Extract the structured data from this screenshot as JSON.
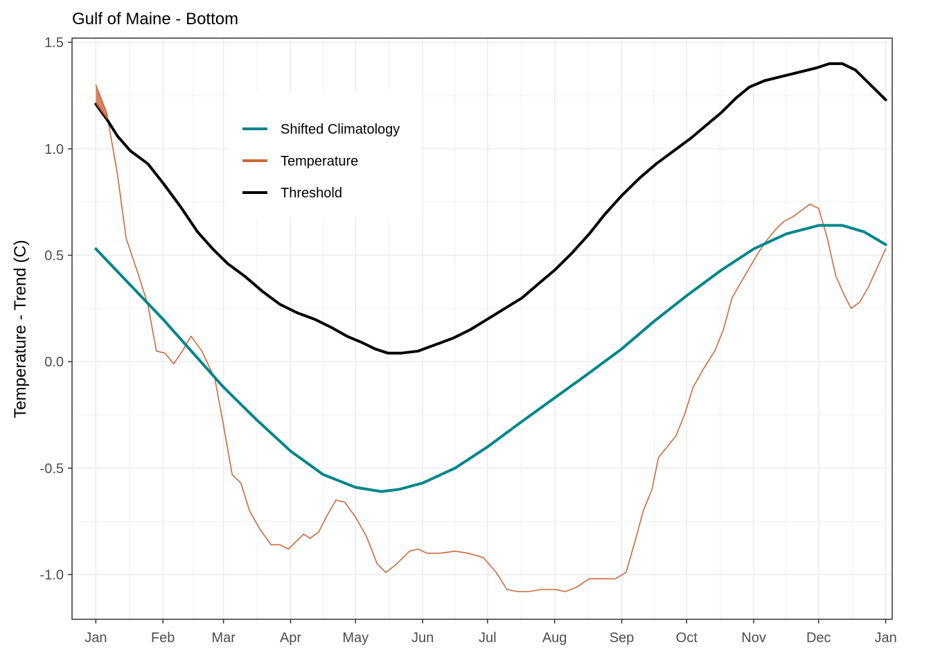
{
  "chart_data": {
    "type": "line",
    "title": "Gulf of Maine - Bottom",
    "xlabel": "",
    "ylabel": "Temperature - Trend (C)",
    "x_unit": "day of year",
    "x_ticks": [
      {
        "label": "Jan",
        "day": 1
      },
      {
        "label": "Feb",
        "day": 32
      },
      {
        "label": "Mar",
        "day": 60
      },
      {
        "label": "Apr",
        "day": 91
      },
      {
        "label": "May",
        "day": 121
      },
      {
        "label": "Jun",
        "day": 152
      },
      {
        "label": "Jul",
        "day": 182
      },
      {
        "label": "Aug",
        "day": 213
      },
      {
        "label": "Sep",
        "day": 244
      },
      {
        "label": "Oct",
        "day": 274
      },
      {
        "label": "Nov",
        "day": 305
      },
      {
        "label": "Dec",
        "day": 335
      },
      {
        "label": "Jan",
        "day": 366
      }
    ],
    "y_ticks": [
      "1.5",
      "1.0",
      "0.5",
      "0.0",
      "-0.5",
      "-1.0"
    ],
    "xlim": [
      -10,
      369
    ],
    "ylim": [
      -1.21,
      1.52
    ],
    "grid": true,
    "legend_position": "top-left inside",
    "series": [
      {
        "name": "Shifted Climatology",
        "color": "#00868b",
        "points": [
          [
            1,
            0.53
          ],
          [
            16,
            0.37
          ],
          [
            32,
            0.2
          ],
          [
            46,
            0.04
          ],
          [
            60,
            -0.12
          ],
          [
            75,
            -0.27
          ],
          [
            91,
            -0.42
          ],
          [
            106,
            -0.53
          ],
          [
            121,
            -0.59
          ],
          [
            133,
            -0.61
          ],
          [
            141,
            -0.6
          ],
          [
            152,
            -0.57
          ],
          [
            167,
            -0.5
          ],
          [
            182,
            -0.4
          ],
          [
            198,
            -0.28
          ],
          [
            213,
            -0.17
          ],
          [
            228,
            -0.06
          ],
          [
            244,
            0.06
          ],
          [
            259,
            0.19
          ],
          [
            274,
            0.31
          ],
          [
            290,
            0.43
          ],
          [
            305,
            0.53
          ],
          [
            320,
            0.6
          ],
          [
            335,
            0.64
          ],
          [
            346,
            0.64
          ],
          [
            356,
            0.61
          ],
          [
            366,
            0.55
          ]
        ]
      },
      {
        "name": "Temperature",
        "color": "#cd6839",
        "points": [
          [
            1,
            1.3
          ],
          [
            6,
            1.17
          ],
          [
            11,
            0.88
          ],
          [
            15,
            0.58
          ],
          [
            20,
            0.43
          ],
          [
            25,
            0.27
          ],
          [
            29,
            0.05
          ],
          [
            33,
            0.04
          ],
          [
            37,
            -0.01
          ],
          [
            41,
            0.05
          ],
          [
            45,
            0.12
          ],
          [
            50,
            0.05
          ],
          [
            56,
            -0.08
          ],
          [
            60,
            -0.3
          ],
          [
            64,
            -0.53
          ],
          [
            68,
            -0.57
          ],
          [
            72,
            -0.7
          ],
          [
            77,
            -0.79
          ],
          [
            82,
            -0.86
          ],
          [
            86,
            -0.86
          ],
          [
            90,
            -0.88
          ],
          [
            94,
            -0.84
          ],
          [
            97,
            -0.81
          ],
          [
            100,
            -0.83
          ],
          [
            104,
            -0.8
          ],
          [
            108,
            -0.72
          ],
          [
            112,
            -0.65
          ],
          [
            116,
            -0.66
          ],
          [
            121,
            -0.73
          ],
          [
            126,
            -0.82
          ],
          [
            131,
            -0.95
          ],
          [
            135,
            -0.99
          ],
          [
            140,
            -0.95
          ],
          [
            146,
            -0.89
          ],
          [
            150,
            -0.88
          ],
          [
            154,
            -0.9
          ],
          [
            160,
            -0.9
          ],
          [
            167,
            -0.89
          ],
          [
            173,
            -0.9
          ],
          [
            180,
            -0.92
          ],
          [
            186,
            -0.99
          ],
          [
            191,
            -1.07
          ],
          [
            196,
            -1.08
          ],
          [
            201,
            -1.08
          ],
          [
            207,
            -1.07
          ],
          [
            213,
            -1.07
          ],
          [
            218,
            -1.08
          ],
          [
            223,
            -1.06
          ],
          [
            229,
            -1.02
          ],
          [
            235,
            -1.02
          ],
          [
            241,
            -1.02
          ],
          [
            246,
            -0.99
          ],
          [
            250,
            -0.85
          ],
          [
            254,
            -0.7
          ],
          [
            258,
            -0.6
          ],
          [
            261,
            -0.45
          ],
          [
            265,
            -0.4
          ],
          [
            269,
            -0.35
          ],
          [
            273,
            -0.25
          ],
          [
            277,
            -0.12
          ],
          [
            282,
            -0.03
          ],
          [
            287,
            0.05
          ],
          [
            291,
            0.15
          ],
          [
            295,
            0.3
          ],
          [
            299,
            0.37
          ],
          [
            303,
            0.44
          ],
          [
            307,
            0.51
          ],
          [
            311,
            0.57
          ],
          [
            315,
            0.62
          ],
          [
            319,
            0.66
          ],
          [
            323,
            0.68
          ],
          [
            327,
            0.71
          ],
          [
            331,
            0.74
          ],
          [
            335,
            0.72
          ],
          [
            339,
            0.58
          ],
          [
            343,
            0.4
          ],
          [
            347,
            0.31
          ],
          [
            350,
            0.25
          ],
          [
            354,
            0.28
          ],
          [
            358,
            0.35
          ],
          [
            362,
            0.44
          ],
          [
            366,
            0.53
          ]
        ]
      },
      {
        "name": "Threshold",
        "color": "#000000",
        "points": [
          [
            1,
            1.21
          ],
          [
            6,
            1.14
          ],
          [
            11,
            1.06
          ],
          [
            17,
            0.99
          ],
          [
            25,
            0.93
          ],
          [
            32,
            0.84
          ],
          [
            40,
            0.73
          ],
          [
            48,
            0.61
          ],
          [
            55,
            0.53
          ],
          [
            62,
            0.46
          ],
          [
            70,
            0.4
          ],
          [
            78,
            0.33
          ],
          [
            86,
            0.27
          ],
          [
            94,
            0.23
          ],
          [
            102,
            0.2
          ],
          [
            110,
            0.16
          ],
          [
            117,
            0.12
          ],
          [
            124,
            0.09
          ],
          [
            130,
            0.06
          ],
          [
            136,
            0.04
          ],
          [
            142,
            0.04
          ],
          [
            150,
            0.05
          ],
          [
            158,
            0.08
          ],
          [
            166,
            0.11
          ],
          [
            174,
            0.15
          ],
          [
            182,
            0.2
          ],
          [
            190,
            0.25
          ],
          [
            198,
            0.3
          ],
          [
            206,
            0.37
          ],
          [
            213,
            0.43
          ],
          [
            221,
            0.51
          ],
          [
            229,
            0.6
          ],
          [
            236,
            0.69
          ],
          [
            244,
            0.78
          ],
          [
            252,
            0.86
          ],
          [
            260,
            0.93
          ],
          [
            268,
            0.99
          ],
          [
            276,
            1.05
          ],
          [
            283,
            1.11
          ],
          [
            290,
            1.17
          ],
          [
            297,
            1.24
          ],
          [
            303,
            1.29
          ],
          [
            310,
            1.32
          ],
          [
            318,
            1.34
          ],
          [
            326,
            1.36
          ],
          [
            334,
            1.38
          ],
          [
            340,
            1.4
          ],
          [
            346,
            1.4
          ],
          [
            352,
            1.37
          ],
          [
            358,
            1.31
          ],
          [
            366,
            1.23
          ]
        ]
      }
    ]
  }
}
